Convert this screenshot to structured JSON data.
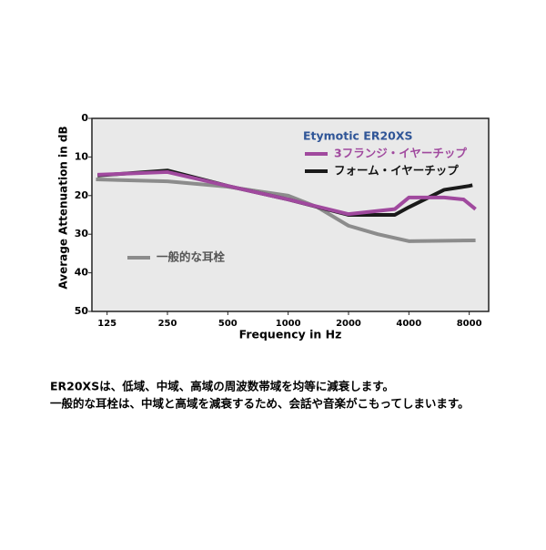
{
  "chart_data": {
    "type": "line",
    "legend_title": "Etymotic ER20XS",
    "xlabel": "Frequency in Hz",
    "ylabel": "Average Attenuation in dB",
    "xscale": "log",
    "xlim": [
      105,
      10000
    ],
    "xticks": [
      125,
      250,
      500,
      1000,
      2000,
      4000,
      8000
    ],
    "ylim": [
      0,
      50
    ],
    "yticks": [
      0,
      10,
      20,
      30,
      40,
      50
    ],
    "yinverted": true,
    "series": [
      {
        "name": "一般的な耳栓",
        "color": "#8c8c8c",
        "x": [
          110,
          250,
          500,
          1000,
          1400,
          2000,
          2800,
          4000,
          8600
        ],
        "values": [
          15.8,
          16.3,
          17.7,
          20,
          23,
          27.8,
          30,
          31.8,
          31.6
        ]
      },
      {
        "name": "フォーム・イヤーチップ",
        "color": "#1a1a1a",
        "x": [
          112,
          250,
          500,
          1000,
          2000,
          3400,
          4000,
          6000,
          8000,
          8300
        ],
        "values": [
          14.8,
          13.5,
          17.5,
          21,
          25,
          25,
          23,
          18.5,
          17.5,
          17.3
        ]
      },
      {
        "name": "3フランジ・イヤーチップ",
        "color": "#a0499e",
        "x": [
          112,
          250,
          500,
          1000,
          2000,
          3400,
          4000,
          6000,
          7500,
          8600
        ],
        "values": [
          14.6,
          13.9,
          17.5,
          21,
          24.8,
          23.5,
          20.5,
          20.5,
          21,
          23.5
        ]
      }
    ]
  },
  "captions": [
    "ER20XSは、低域、中域、高域の周波数帯域を均等に減衰します。",
    "一般的な耳栓は、中域と高域を減衰するため、会話や音楽がこもってしまいます。"
  ]
}
